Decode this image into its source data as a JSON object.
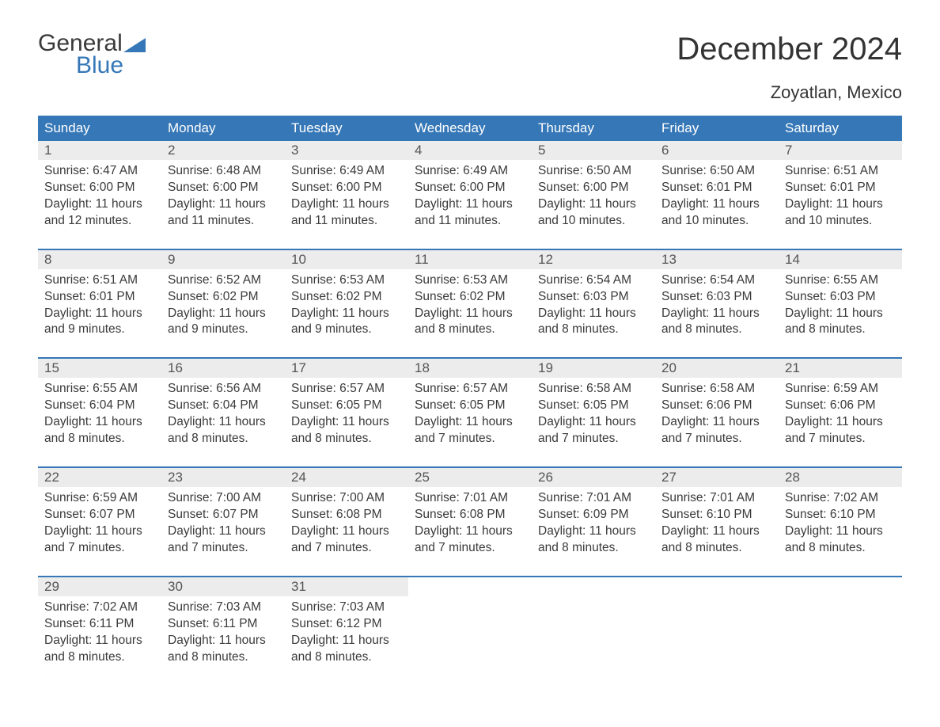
{
  "logo": {
    "top": "General",
    "bottom": "Blue"
  },
  "title": "December 2024",
  "location": "Zoyatlan, Mexico",
  "colors": {
    "header_bg": "#3577b7",
    "header_text": "#ffffff",
    "daynum_bg": "#ececec",
    "daynum_text": "#555555",
    "body_text": "#3a3a3a",
    "page_bg": "#ffffff",
    "accent": "#3577b7"
  },
  "typography": {
    "title_fontsize": 40,
    "location_fontsize": 22,
    "dow_fontsize": 17,
    "daynum_fontsize": 17,
    "cell_fontsize": 15.5,
    "font_family": "Arial"
  },
  "days_of_week": [
    "Sunday",
    "Monday",
    "Tuesday",
    "Wednesday",
    "Thursday",
    "Friday",
    "Saturday"
  ],
  "weeks": [
    [
      {
        "num": "1",
        "sunrise": "Sunrise: 6:47 AM",
        "sunset": "Sunset: 6:00 PM",
        "daylight1": "Daylight: 11 hours",
        "daylight2": "and 12 minutes."
      },
      {
        "num": "2",
        "sunrise": "Sunrise: 6:48 AM",
        "sunset": "Sunset: 6:00 PM",
        "daylight1": "Daylight: 11 hours",
        "daylight2": "and 11 minutes."
      },
      {
        "num": "3",
        "sunrise": "Sunrise: 6:49 AM",
        "sunset": "Sunset: 6:00 PM",
        "daylight1": "Daylight: 11 hours",
        "daylight2": "and 11 minutes."
      },
      {
        "num": "4",
        "sunrise": "Sunrise: 6:49 AM",
        "sunset": "Sunset: 6:00 PM",
        "daylight1": "Daylight: 11 hours",
        "daylight2": "and 11 minutes."
      },
      {
        "num": "5",
        "sunrise": "Sunrise: 6:50 AM",
        "sunset": "Sunset: 6:00 PM",
        "daylight1": "Daylight: 11 hours",
        "daylight2": "and 10 minutes."
      },
      {
        "num": "6",
        "sunrise": "Sunrise: 6:50 AM",
        "sunset": "Sunset: 6:01 PM",
        "daylight1": "Daylight: 11 hours",
        "daylight2": "and 10 minutes."
      },
      {
        "num": "7",
        "sunrise": "Sunrise: 6:51 AM",
        "sunset": "Sunset: 6:01 PM",
        "daylight1": "Daylight: 11 hours",
        "daylight2": "and 10 minutes."
      }
    ],
    [
      {
        "num": "8",
        "sunrise": "Sunrise: 6:51 AM",
        "sunset": "Sunset: 6:01 PM",
        "daylight1": "Daylight: 11 hours",
        "daylight2": "and 9 minutes."
      },
      {
        "num": "9",
        "sunrise": "Sunrise: 6:52 AM",
        "sunset": "Sunset: 6:02 PM",
        "daylight1": "Daylight: 11 hours",
        "daylight2": "and 9 minutes."
      },
      {
        "num": "10",
        "sunrise": "Sunrise: 6:53 AM",
        "sunset": "Sunset: 6:02 PM",
        "daylight1": "Daylight: 11 hours",
        "daylight2": "and 9 minutes."
      },
      {
        "num": "11",
        "sunrise": "Sunrise: 6:53 AM",
        "sunset": "Sunset: 6:02 PM",
        "daylight1": "Daylight: 11 hours",
        "daylight2": "and 8 minutes."
      },
      {
        "num": "12",
        "sunrise": "Sunrise: 6:54 AM",
        "sunset": "Sunset: 6:03 PM",
        "daylight1": "Daylight: 11 hours",
        "daylight2": "and 8 minutes."
      },
      {
        "num": "13",
        "sunrise": "Sunrise: 6:54 AM",
        "sunset": "Sunset: 6:03 PM",
        "daylight1": "Daylight: 11 hours",
        "daylight2": "and 8 minutes."
      },
      {
        "num": "14",
        "sunrise": "Sunrise: 6:55 AM",
        "sunset": "Sunset: 6:03 PM",
        "daylight1": "Daylight: 11 hours",
        "daylight2": "and 8 minutes."
      }
    ],
    [
      {
        "num": "15",
        "sunrise": "Sunrise: 6:55 AM",
        "sunset": "Sunset: 6:04 PM",
        "daylight1": "Daylight: 11 hours",
        "daylight2": "and 8 minutes."
      },
      {
        "num": "16",
        "sunrise": "Sunrise: 6:56 AM",
        "sunset": "Sunset: 6:04 PM",
        "daylight1": "Daylight: 11 hours",
        "daylight2": "and 8 minutes."
      },
      {
        "num": "17",
        "sunrise": "Sunrise: 6:57 AM",
        "sunset": "Sunset: 6:05 PM",
        "daylight1": "Daylight: 11 hours",
        "daylight2": "and 8 minutes."
      },
      {
        "num": "18",
        "sunrise": "Sunrise: 6:57 AM",
        "sunset": "Sunset: 6:05 PM",
        "daylight1": "Daylight: 11 hours",
        "daylight2": "and 7 minutes."
      },
      {
        "num": "19",
        "sunrise": "Sunrise: 6:58 AM",
        "sunset": "Sunset: 6:05 PM",
        "daylight1": "Daylight: 11 hours",
        "daylight2": "and 7 minutes."
      },
      {
        "num": "20",
        "sunrise": "Sunrise: 6:58 AM",
        "sunset": "Sunset: 6:06 PM",
        "daylight1": "Daylight: 11 hours",
        "daylight2": "and 7 minutes."
      },
      {
        "num": "21",
        "sunrise": "Sunrise: 6:59 AM",
        "sunset": "Sunset: 6:06 PM",
        "daylight1": "Daylight: 11 hours",
        "daylight2": "and 7 minutes."
      }
    ],
    [
      {
        "num": "22",
        "sunrise": "Sunrise: 6:59 AM",
        "sunset": "Sunset: 6:07 PM",
        "daylight1": "Daylight: 11 hours",
        "daylight2": "and 7 minutes."
      },
      {
        "num": "23",
        "sunrise": "Sunrise: 7:00 AM",
        "sunset": "Sunset: 6:07 PM",
        "daylight1": "Daylight: 11 hours",
        "daylight2": "and 7 minutes."
      },
      {
        "num": "24",
        "sunrise": "Sunrise: 7:00 AM",
        "sunset": "Sunset: 6:08 PM",
        "daylight1": "Daylight: 11 hours",
        "daylight2": "and 7 minutes."
      },
      {
        "num": "25",
        "sunrise": "Sunrise: 7:01 AM",
        "sunset": "Sunset: 6:08 PM",
        "daylight1": "Daylight: 11 hours",
        "daylight2": "and 7 minutes."
      },
      {
        "num": "26",
        "sunrise": "Sunrise: 7:01 AM",
        "sunset": "Sunset: 6:09 PM",
        "daylight1": "Daylight: 11 hours",
        "daylight2": "and 8 minutes."
      },
      {
        "num": "27",
        "sunrise": "Sunrise: 7:01 AM",
        "sunset": "Sunset: 6:10 PM",
        "daylight1": "Daylight: 11 hours",
        "daylight2": "and 8 minutes."
      },
      {
        "num": "28",
        "sunrise": "Sunrise: 7:02 AM",
        "sunset": "Sunset: 6:10 PM",
        "daylight1": "Daylight: 11 hours",
        "daylight2": "and 8 minutes."
      }
    ],
    [
      {
        "num": "29",
        "sunrise": "Sunrise: 7:02 AM",
        "sunset": "Sunset: 6:11 PM",
        "daylight1": "Daylight: 11 hours",
        "daylight2": "and 8 minutes."
      },
      {
        "num": "30",
        "sunrise": "Sunrise: 7:03 AM",
        "sunset": "Sunset: 6:11 PM",
        "daylight1": "Daylight: 11 hours",
        "daylight2": "and 8 minutes."
      },
      {
        "num": "31",
        "sunrise": "Sunrise: 7:03 AM",
        "sunset": "Sunset: 6:12 PM",
        "daylight1": "Daylight: 11 hours",
        "daylight2": "and 8 minutes."
      },
      null,
      null,
      null,
      null
    ]
  ]
}
